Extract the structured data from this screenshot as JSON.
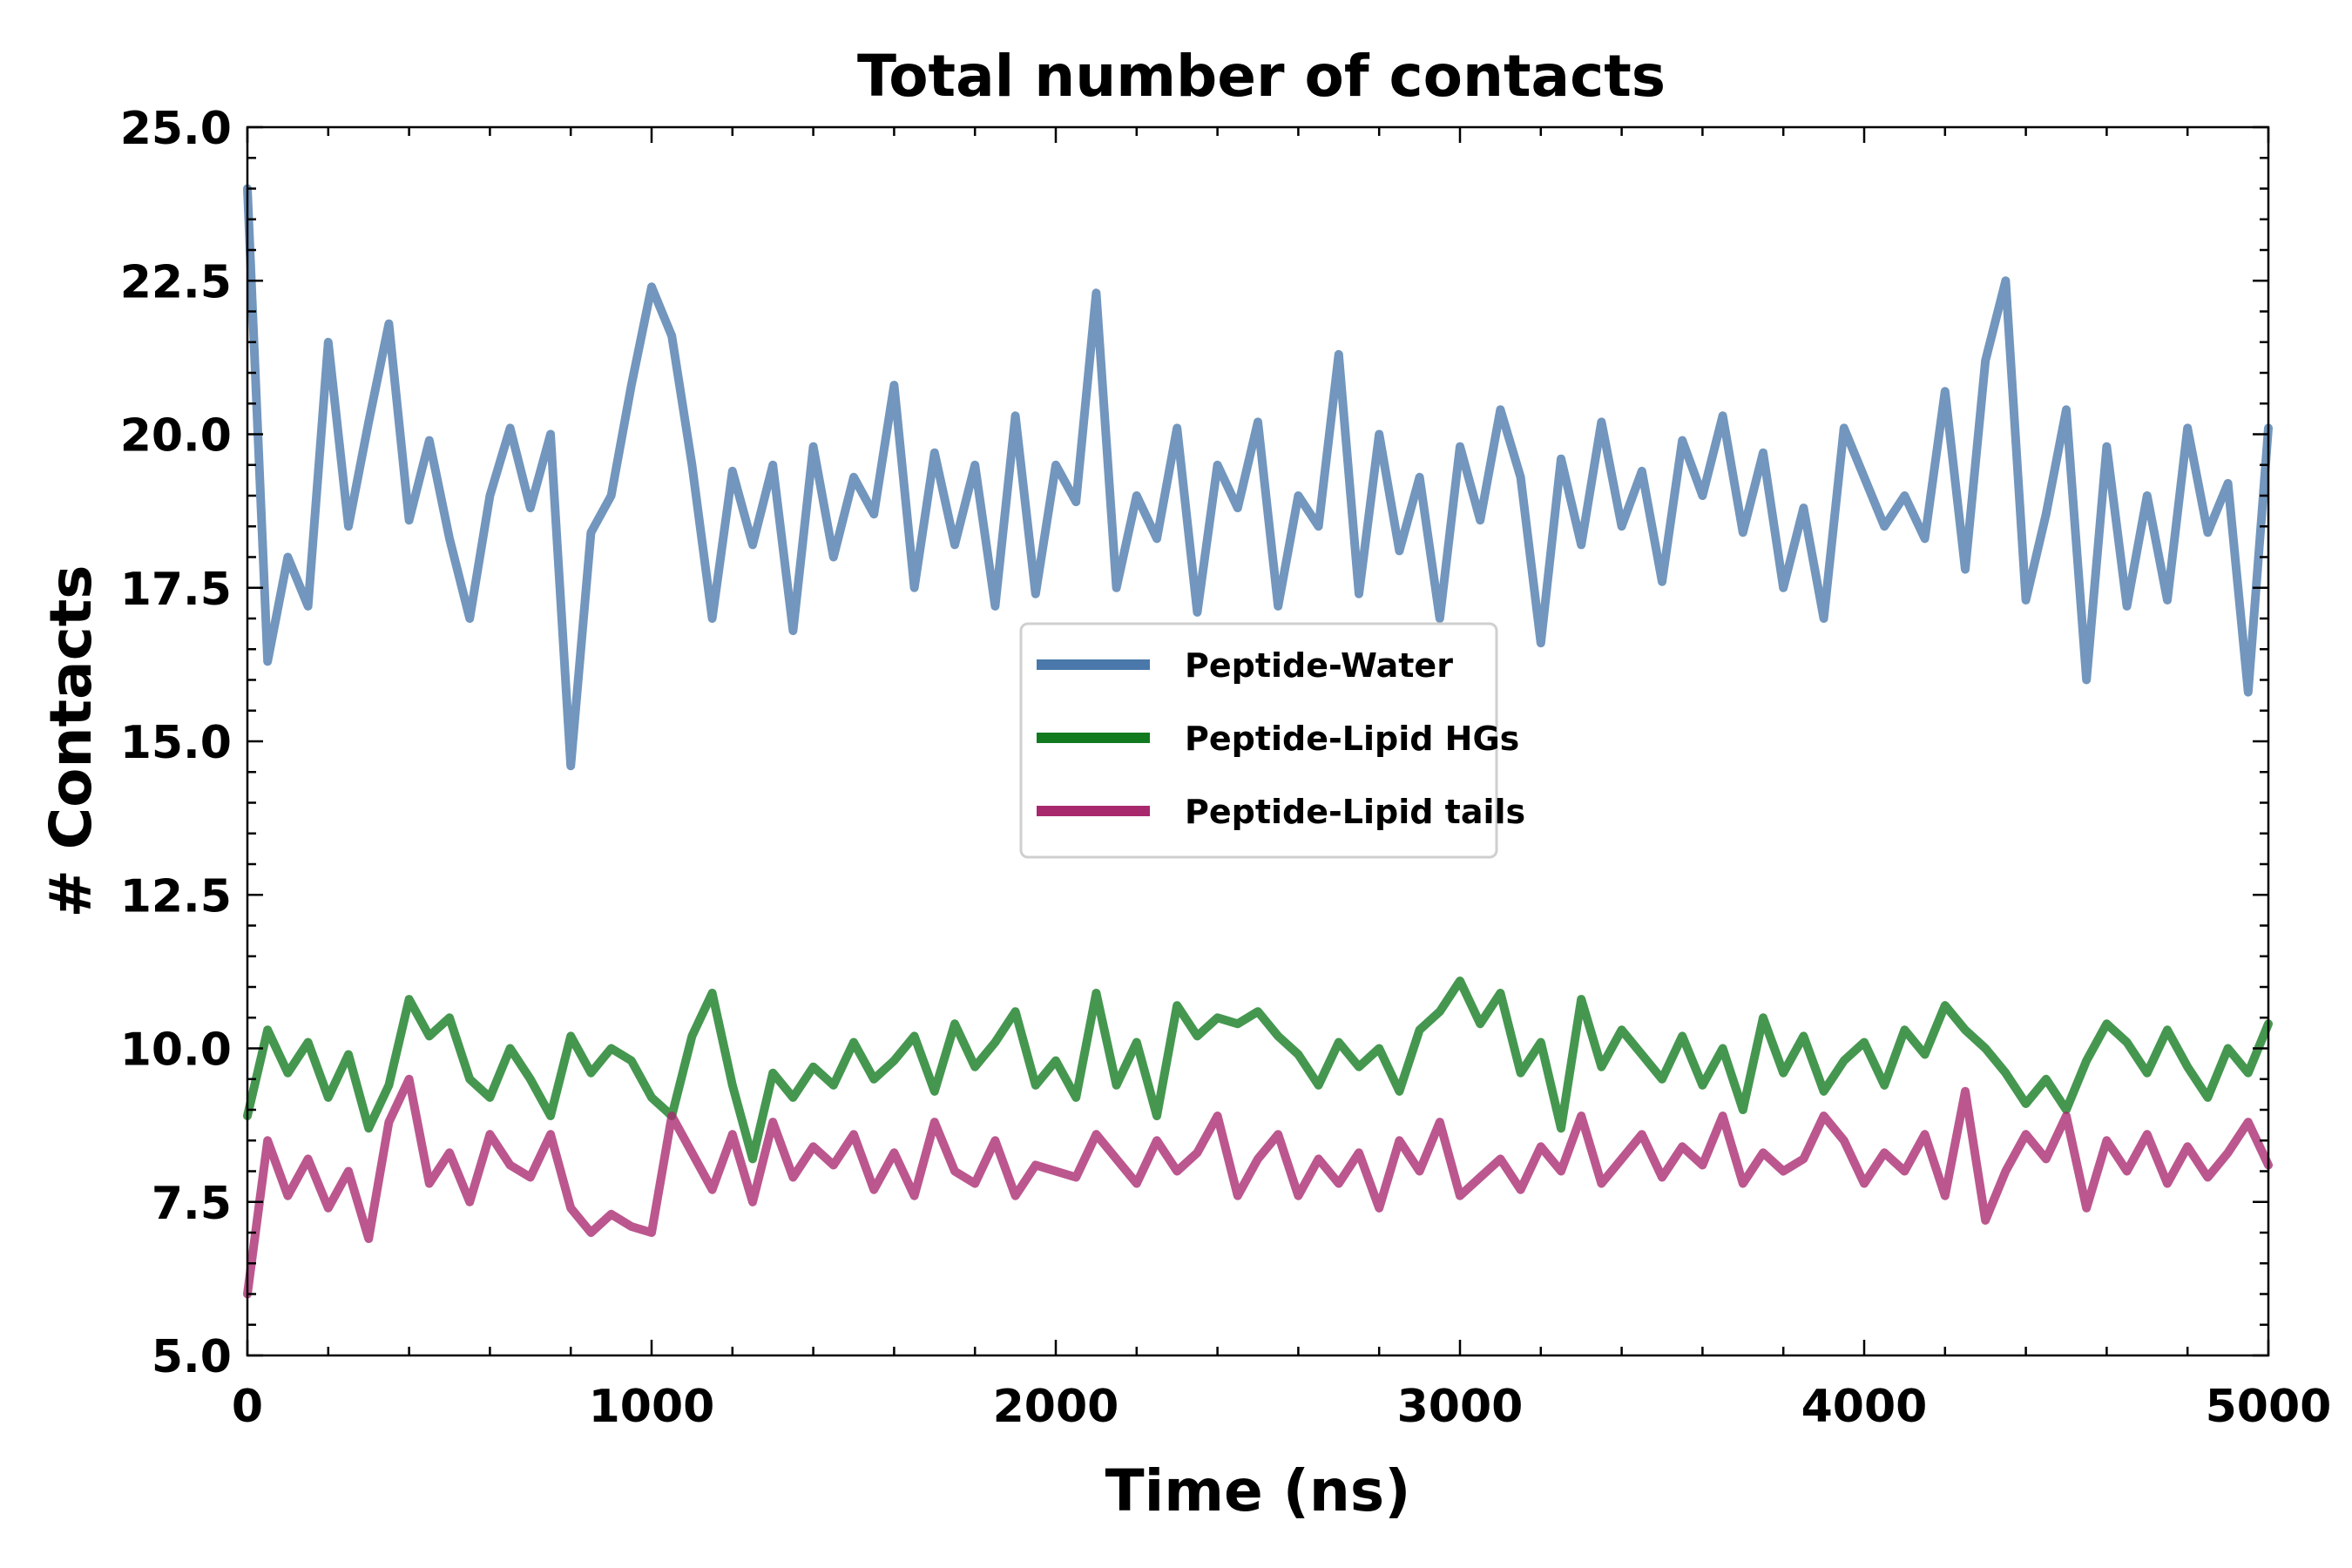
{
  "chart_data": {
    "type": "line",
    "title": "Total number of contacts",
    "xlabel": "Time (ns)",
    "ylabel": "# Contacts",
    "xlim": [
      0,
      5000
    ],
    "ylim": [
      5.0,
      25.0
    ],
    "x_ticks": [
      0,
      1000,
      2000,
      3000,
      4000,
      5000
    ],
    "x_tick_labels": [
      "0",
      "1000",
      "2000",
      "3000",
      "4000",
      "5000"
    ],
    "x_minor_step": 200,
    "y_ticks": [
      5.0,
      7.5,
      10.0,
      12.5,
      15.0,
      17.5,
      20.0,
      22.5,
      25.0
    ],
    "y_tick_labels": [
      "5.0",
      "7.5",
      "10.0",
      "12.5",
      "15.0",
      "17.5",
      "20.0",
      "22.5",
      "25.0"
    ],
    "y_minor_step": 0.5,
    "grid": false,
    "legend_position": "center",
    "series": [
      {
        "name": "Peptide-Water",
        "color": "#4a78aa",
        "x": [
          0,
          50,
          100,
          150,
          200,
          250,
          300,
          350,
          400,
          450,
          500,
          550,
          600,
          650,
          700,
          750,
          800,
          850,
          900,
          950,
          1000,
          1050,
          1100,
          1150,
          1200,
          1250,
          1300,
          1350,
          1400,
          1450,
          1500,
          1550,
          1600,
          1650,
          1700,
          1750,
          1800,
          1850,
          1900,
          1950,
          2000,
          2050,
          2100,
          2150,
          2200,
          2250,
          2300,
          2350,
          2400,
          2450,
          2500,
          2550,
          2600,
          2650,
          2700,
          2750,
          2800,
          2850,
          2900,
          2950,
          3000,
          3050,
          3100,
          3150,
          3200,
          3250,
          3300,
          3350,
          3400,
          3450,
          3500,
          3550,
          3600,
          3650,
          3700,
          3750,
          3800,
          3850,
          3900,
          3950,
          4000,
          4050,
          4100,
          4150,
          4200,
          4250,
          4300,
          4350,
          4400,
          4450,
          4500,
          4550,
          4600,
          4650,
          4700,
          4750,
          4800,
          4850,
          4900,
          4950,
          5000
        ],
        "values": [
          24.0,
          16.3,
          18.0,
          17.2,
          21.5,
          18.5,
          20.2,
          21.8,
          18.6,
          19.9,
          18.3,
          17.0,
          19.0,
          20.1,
          18.8,
          20.0,
          14.6,
          18.4,
          19.0,
          20.8,
          22.4,
          21.6,
          19.5,
          17.0,
          19.4,
          18.2,
          19.5,
          16.8,
          19.8,
          18.0,
          19.3,
          18.7,
          20.8,
          17.5,
          19.7,
          18.2,
          19.5,
          17.2,
          20.3,
          17.4,
          19.5,
          18.9,
          22.3,
          17.5,
          19.0,
          18.3,
          20.1,
          17.1,
          19.5,
          18.8,
          20.2,
          17.2,
          19.0,
          18.5,
          21.3,
          17.4,
          20.0,
          18.1,
          19.3,
          17.0,
          19.8,
          18.6,
          20.4,
          19.3,
          16.6,
          19.6,
          18.2,
          20.2,
          18.5,
          19.4,
          17.6,
          19.9,
          19.0,
          20.3,
          18.4,
          19.7,
          17.5,
          18.8,
          17.0,
          20.1,
          19.3,
          18.5,
          19.0,
          18.3,
          20.7,
          17.8,
          21.2,
          22.5,
          17.3,
          18.7,
          20.4,
          16.0,
          19.8,
          17.2,
          19.0,
          17.3,
          20.1,
          18.4,
          19.2,
          15.8,
          20.1
        ]
      },
      {
        "name": "Peptide-Lipid HGs",
        "color": "#117a1f",
        "x": [
          0,
          50,
          100,
          150,
          200,
          250,
          300,
          350,
          400,
          450,
          500,
          550,
          600,
          650,
          700,
          750,
          800,
          850,
          900,
          950,
          1000,
          1050,
          1100,
          1150,
          1200,
          1250,
          1300,
          1350,
          1400,
          1450,
          1500,
          1550,
          1600,
          1650,
          1700,
          1750,
          1800,
          1850,
          1900,
          1950,
          2000,
          2050,
          2100,
          2150,
          2200,
          2250,
          2300,
          2350,
          2400,
          2450,
          2500,
          2550,
          2600,
          2650,
          2700,
          2750,
          2800,
          2850,
          2900,
          2950,
          3000,
          3050,
          3100,
          3150,
          3200,
          3250,
          3300,
          3350,
          3400,
          3450,
          3500,
          3550,
          3600,
          3650,
          3700,
          3750,
          3800,
          3850,
          3900,
          3950,
          4000,
          4050,
          4100,
          4150,
          4200,
          4250,
          4300,
          4350,
          4400,
          4450,
          4500,
          4550,
          4600,
          4650,
          4700,
          4750,
          4800,
          4850,
          4900,
          4950,
          5000
        ],
        "values": [
          8.9,
          10.3,
          9.6,
          10.1,
          9.2,
          9.9,
          8.7,
          9.4,
          10.8,
          10.2,
          10.5,
          9.5,
          9.2,
          10.0,
          9.5,
          8.9,
          10.2,
          9.6,
          10.0,
          9.8,
          9.2,
          8.9,
          10.2,
          10.9,
          9.4,
          8.2,
          9.6,
          9.2,
          9.7,
          9.4,
          10.1,
          9.5,
          9.8,
          10.2,
          9.3,
          10.4,
          9.7,
          10.1,
          10.6,
          9.4,
          9.8,
          9.2,
          10.9,
          9.4,
          10.1,
          8.9,
          10.7,
          10.2,
          10.5,
          10.4,
          10.6,
          10.2,
          9.9,
          9.4,
          10.1,
          9.7,
          10.0,
          9.3,
          10.3,
          10.6,
          11.1,
          10.4,
          10.9,
          9.6,
          10.1,
          8.7,
          10.8,
          9.7,
          10.3,
          9.9,
          9.5,
          10.2,
          9.4,
          10.0,
          9.0,
          10.5,
          9.6,
          10.2,
          9.3,
          9.8,
          10.1,
          9.4,
          10.3,
          9.9,
          10.7,
          10.3,
          10.0,
          9.6,
          9.1,
          9.5,
          9.0,
          9.8,
          10.4,
          10.1,
          9.6,
          10.3,
          9.7,
          9.2,
          10.0,
          9.6,
          10.4
        ]
      },
      {
        "name": "Peptide-Lipid tails",
        "color": "#a8286e",
        "x": [
          0,
          50,
          100,
          150,
          200,
          250,
          300,
          350,
          400,
          450,
          500,
          550,
          600,
          650,
          700,
          750,
          800,
          850,
          900,
          950,
          1000,
          1050,
          1100,
          1150,
          1200,
          1250,
          1300,
          1350,
          1400,
          1450,
          1500,
          1550,
          1600,
          1650,
          1700,
          1750,
          1800,
          1850,
          1900,
          1950,
          2000,
          2050,
          2100,
          2150,
          2200,
          2250,
          2300,
          2350,
          2400,
          2450,
          2500,
          2550,
          2600,
          2650,
          2700,
          2750,
          2800,
          2850,
          2900,
          2950,
          3000,
          3050,
          3100,
          3150,
          3200,
          3250,
          3300,
          3350,
          3400,
          3450,
          3500,
          3550,
          3600,
          3650,
          3700,
          3750,
          3800,
          3850,
          3900,
          3950,
          4000,
          4050,
          4100,
          4150,
          4200,
          4250,
          4300,
          4350,
          4400,
          4450,
          4500,
          4550,
          4600,
          4650,
          4700,
          4750,
          4800,
          4850,
          4900,
          4950,
          5000
        ],
        "values": [
          6.0,
          8.5,
          7.6,
          8.2,
          7.4,
          8.0,
          6.9,
          8.8,
          9.5,
          7.8,
          8.3,
          7.5,
          8.6,
          8.1,
          7.9,
          8.6,
          7.4,
          7.0,
          7.3,
          7.1,
          7.0,
          8.9,
          8.3,
          7.7,
          8.6,
          7.5,
          8.8,
          7.9,
          8.4,
          8.1,
          8.6,
          7.7,
          8.3,
          7.6,
          8.8,
          8.0,
          7.8,
          8.5,
          7.6,
          8.1,
          8.0,
          7.9,
          8.6,
          8.2,
          7.8,
          8.5,
          8.0,
          8.3,
          8.9,
          7.6,
          8.2,
          8.6,
          7.6,
          8.2,
          7.8,
          8.3,
          7.4,
          8.5,
          8.0,
          8.8,
          7.6,
          7.9,
          8.2,
          7.7,
          8.4,
          8.0,
          8.9,
          7.8,
          8.2,
          8.6,
          7.9,
          8.4,
          8.1,
          8.9,
          7.8,
          8.3,
          8.0,
          8.2,
          8.9,
          8.5,
          7.8,
          8.3,
          8.0,
          8.6,
          7.6,
          9.3,
          7.2,
          8.0,
          8.6,
          8.2,
          8.9,
          7.4,
          8.5,
          8.0,
          8.6,
          7.8,
          8.4,
          7.9,
          8.3,
          8.8,
          8.1
        ]
      }
    ]
  }
}
